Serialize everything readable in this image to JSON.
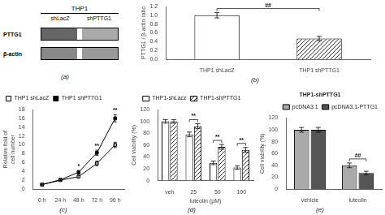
{
  "chart_data": [
    {
      "type": "blot",
      "title": "THP1",
      "subtitle": "(a)",
      "categories": [
        "shLacZ",
        "shPTTG1"
      ],
      "series": [
        {
          "name": "PTTG1",
          "colors": [
            "#666666",
            "#aaaaaa"
          ]
        },
        {
          "name": "β-actin",
          "colors": [
            "#888888",
            "#999999"
          ]
        }
      ]
    },
    {
      "type": "bar",
      "subtitle": "(b)",
      "ylabel": "PTTG1 / β-actin ratio",
      "categories": [
        "THP1 shLacZ",
        "THP1 shPTTG1"
      ],
      "values": [
        1.0,
        0.47
      ],
      "errors": [
        0.06,
        0.05
      ],
      "colors": [
        "white",
        "white"
      ],
      "ylim": [
        0,
        1.2
      ],
      "yticks": [
        {
          "value": 0.0,
          "label": "0.0"
        },
        0.2,
        0.4,
        0.6,
        0.8,
        {
          "value": 1.0,
          "label": "1.0"
        },
        1.2
      ],
      "grid": false,
      "annotations": [
        {
          "text": "##"
        }
      ]
    },
    {
      "type": "line",
      "subtitle": "(c)",
      "ylabel": "Relative fold of\ncell number",
      "categories": [
        "0 h",
        "24 h",
        "48 h",
        "72 h",
        "96 h"
      ],
      "series": [
        {
          "name": "THP1 shLacZ",
          "color": "black",
          "marker": "open_square",
          "values": [
            1.0,
            2.0,
            2.8,
            5.8,
            10.0
          ],
          "errors": [
            0.1,
            0.15,
            0.3,
            0.5,
            0.6
          ]
        },
        {
          "name": "THP1 shPTTG1",
          "color": "black",
          "marker": "square",
          "values": [
            1.0,
            2.1,
            3.8,
            8.2,
            16.0
          ],
          "errors": [
            0.1,
            0.2,
            0.4,
            0.6,
            0.8
          ]
        }
      ],
      "ylim": [
        0,
        18
      ],
      "yticks": [
        0,
        2,
        4,
        6,
        8,
        10,
        12,
        14,
        16,
        18
      ],
      "grid": false,
      "legend": "upper left",
      "annotations": [
        {
          "x": "48 h",
          "text": "*"
        },
        {
          "x": "72 h",
          "text": "**"
        },
        {
          "x": "96 h",
          "text": "**"
        }
      ]
    },
    {
      "type": "bar",
      "subtitle": "(d)",
      "xlabel": "luteolin (μM)",
      "ylabel": "Cell viability (%)",
      "categories": [
        "veh",
        "25",
        "50",
        "100"
      ],
      "series": [
        {
          "name": "THP1-shLacz",
          "color": "white",
          "values": [
            100,
            78,
            30,
            22
          ],
          "errors": [
            3,
            4,
            3,
            3
          ]
        },
        {
          "name": "THP1-shPTTG1",
          "color": "white",
          "values": [
            100,
            92,
            57,
            52
          ],
          "errors": [
            3,
            4,
            4,
            4
          ]
        }
      ],
      "ylim": [
        0,
        120
      ],
      "yticks": [
        0,
        20,
        40,
        60,
        80,
        100,
        120
      ],
      "grid": false,
      "legend": "upper center",
      "annotations": [
        {
          "x": "25",
          "text": "**"
        },
        {
          "x": "50",
          "text": "**"
        },
        {
          "x": "100",
          "text": "**"
        }
      ]
    },
    {
      "type": "bar",
      "title": "THP1-shPTTG1",
      "subtitle": "(e)",
      "ylabel": "Cell viability (%)",
      "categories": [
        "vehicle",
        "luteolin"
      ],
      "series": [
        {
          "name": "pcDNA3.1",
          "color": "#aaaaaa",
          "values": [
            100,
            40
          ],
          "errors": [
            4,
            4
          ]
        },
        {
          "name": "pcDNA3.1-PTTG1",
          "color": "#555555",
          "values": [
            100,
            27
          ],
          "errors": [
            4,
            3
          ]
        }
      ],
      "ylim": [
        0,
        120
      ],
      "yticks": [
        0,
        20,
        40,
        60,
        80,
        100,
        120
      ],
      "grid": false,
      "legend": "upper right",
      "annotations": [
        {
          "x": "luteolin",
          "text": "##"
        }
      ]
    }
  ]
}
